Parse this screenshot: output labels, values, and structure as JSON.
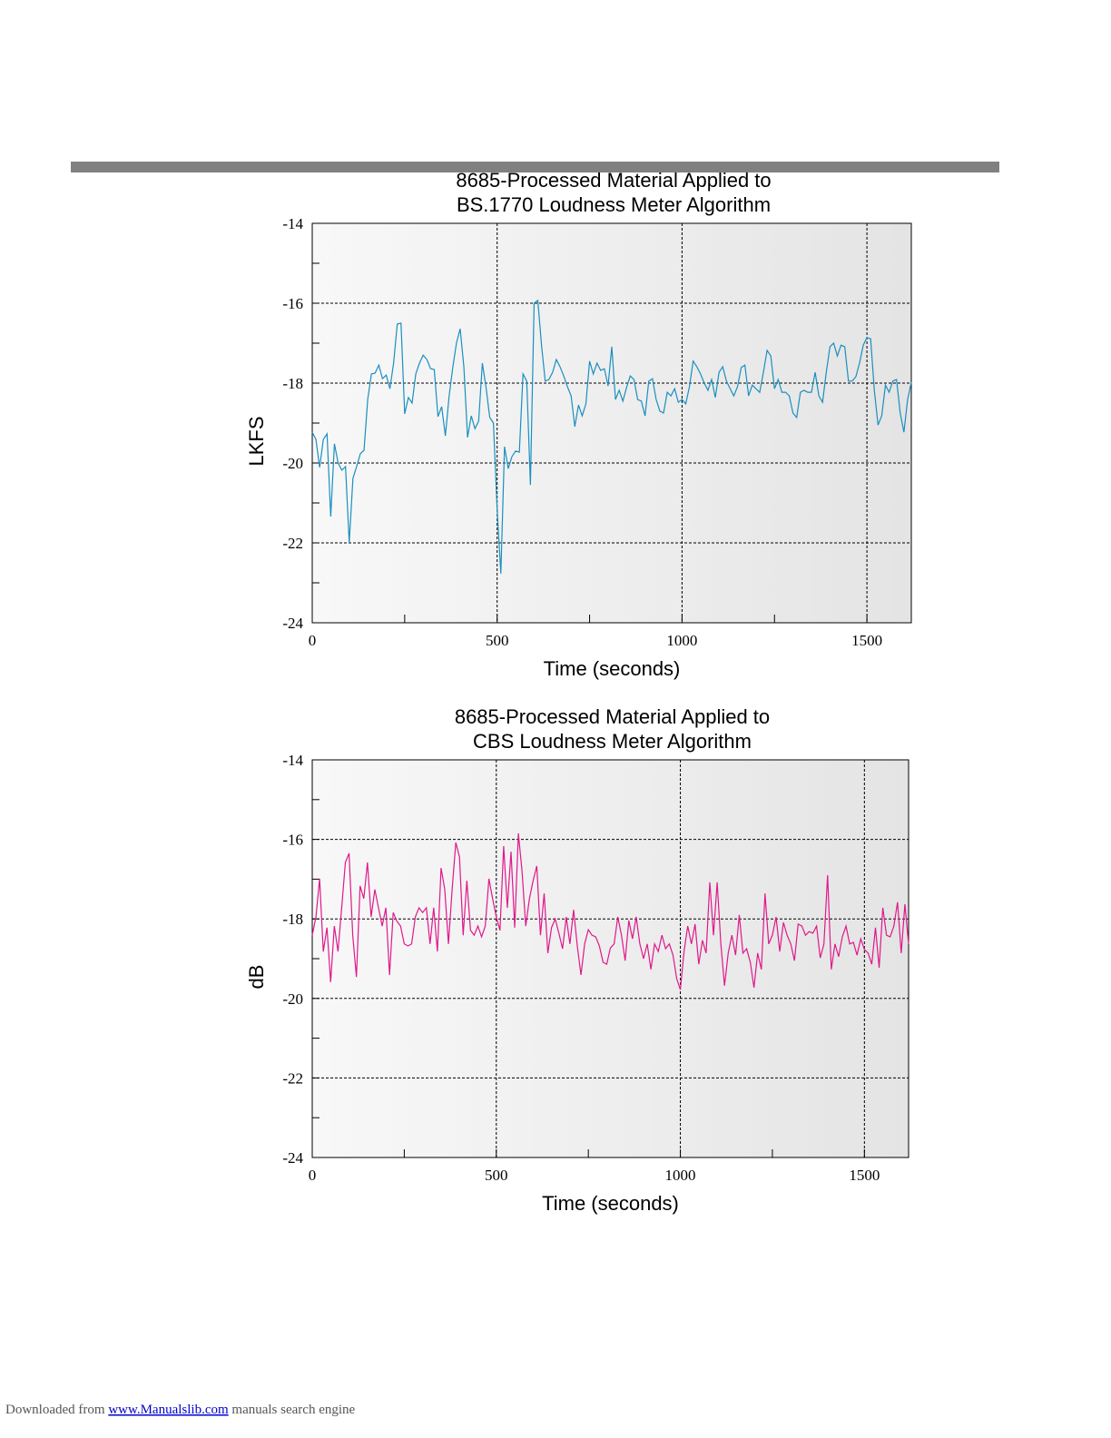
{
  "chart_data": [
    {
      "type": "line",
      "title": [
        "8685-Processed Material Applied to",
        "BS.1770 Loudness Meter Algorithm"
      ],
      "x_label": "Time (seconds)",
      "y_label": "LKFS",
      "xlim": [
        0,
        1620
      ],
      "xticks": [
        0,
        500,
        1000,
        1500
      ],
      "xminorticks": [
        250,
        750,
        1250
      ],
      "ylim": [
        -24,
        -14
      ],
      "yticks": [
        -24,
        -22,
        -20,
        -18,
        -16,
        -14
      ],
      "yminorticks": [
        -23,
        -21,
        -19,
        -17,
        -15
      ],
      "grid": true,
      "x": [
        0,
        10,
        20,
        30,
        40,
        50,
        60,
        70,
        80,
        90,
        100,
        110,
        120,
        130,
        140,
        150,
        160,
        170,
        180,
        190,
        200,
        210,
        220,
        230,
        240,
        250,
        260,
        270,
        280,
        290,
        300,
        310,
        320,
        330,
        340,
        350,
        360,
        370,
        380,
        390,
        400,
        410,
        420,
        430,
        440,
        450,
        460,
        470,
        480,
        490,
        500,
        510,
        520,
        530,
        540,
        550,
        560,
        570,
        580,
        590,
        600,
        610,
        620,
        630,
        640,
        650,
        660,
        670,
        680,
        690,
        700,
        710,
        720,
        730,
        740,
        750,
        760,
        770,
        780,
        790,
        800,
        810,
        820,
        830,
        840,
        850,
        860,
        870,
        880,
        890,
        900,
        910,
        920,
        930,
        940,
        950,
        960,
        970,
        980,
        990,
        1000,
        1010,
        1020,
        1030,
        1040,
        1050,
        1060,
        1070,
        1080,
        1090,
        1100,
        1110,
        1120,
        1130,
        1140,
        1150,
        1160,
        1170,
        1180,
        1190,
        1200,
        1210,
        1220,
        1230,
        1240,
        1250,
        1260,
        1270,
        1280,
        1290,
        1300,
        1310,
        1320,
        1330,
        1340,
        1350,
        1360,
        1370,
        1380,
        1390,
        1400,
        1410,
        1420,
        1430,
        1440,
        1450,
        1460,
        1470,
        1480,
        1490,
        1500,
        1510,
        1520,
        1530,
        1540,
        1550,
        1560,
        1570,
        1580,
        1590,
        1600,
        1610,
        1620
      ],
      "series": [
        {
          "color": "#1a8fbf",
          "values": [
            -19.23,
            -19.41,
            -20.11,
            -19.41,
            -19.27,
            -21.34,
            -19.52,
            -20.0,
            -20.18,
            -20.09,
            -22.0,
            -20.39,
            -20.09,
            -19.77,
            -19.68,
            -18.41,
            -17.77,
            -17.75,
            -17.55,
            -17.89,
            -17.8,
            -18.14,
            -17.5,
            -16.52,
            -16.5,
            -18.77,
            -18.36,
            -18.5,
            -17.77,
            -17.5,
            -17.3,
            -17.41,
            -17.64,
            -17.66,
            -18.84,
            -18.59,
            -19.32,
            -18.34,
            -17.61,
            -17.0,
            -16.64,
            -17.59,
            -19.36,
            -18.82,
            -19.14,
            -18.95,
            -17.5,
            -18.11,
            -18.86,
            -19.0,
            -21.16,
            -22.77,
            -19.59,
            -20.14,
            -19.84,
            -19.7,
            -19.73,
            -17.77,
            -17.95,
            -20.55,
            -16.0,
            -15.93,
            -17.05,
            -17.95,
            -17.91,
            -17.73,
            -17.41,
            -17.59,
            -17.82,
            -18.09,
            -18.32,
            -19.09,
            -18.55,
            -18.82,
            -18.52,
            -17.45,
            -17.77,
            -17.5,
            -17.68,
            -17.64,
            -18.07,
            -17.09,
            -18.41,
            -18.18,
            -18.45,
            -18.11,
            -17.82,
            -17.91,
            -18.41,
            -18.45,
            -18.82,
            -17.95,
            -17.89,
            -18.41,
            -18.7,
            -18.75,
            -18.23,
            -18.32,
            -18.14,
            -18.48,
            -18.41,
            -18.52,
            -18.09,
            -17.45,
            -17.59,
            -17.77,
            -18.0,
            -18.18,
            -17.91,
            -18.36,
            -17.73,
            -17.59,
            -17.95,
            -18.14,
            -18.32,
            -18.09,
            -17.61,
            -17.55,
            -18.32,
            -18.05,
            -18.14,
            -18.23,
            -17.73,
            -17.18,
            -17.32,
            -18.14,
            -17.91,
            -18.23,
            -18.23,
            -18.32,
            -18.75,
            -18.86,
            -18.23,
            -18.18,
            -18.23,
            -18.23,
            -17.73,
            -18.32,
            -18.48,
            -17.73,
            -17.09,
            -17.0,
            -17.32,
            -17.05,
            -17.09,
            -17.95,
            -17.95,
            -17.84,
            -17.5,
            -17.05,
            -16.86,
            -16.89,
            -18.18,
            -19.05,
            -18.82,
            -18.05,
            -18.23,
            -17.95,
            -17.91,
            -18.75,
            -19.23,
            -18.41,
            -17.98
          ]
        }
      ]
    },
    {
      "type": "line",
      "title": [
        "8685-Processed Material Applied to",
        "CBS Loudness Meter Algorithm"
      ],
      "x_label": "Time (seconds)",
      "y_label": "dB",
      "xlim": [
        0,
        1620
      ],
      "xticks": [
        0,
        500,
        1000,
        1500
      ],
      "xminorticks": [
        250,
        750,
        1250
      ],
      "ylim": [
        -24,
        -14
      ],
      "yticks": [
        -24,
        -22,
        -20,
        -18,
        -16,
        -14
      ],
      "yminorticks": [
        -23,
        -21,
        -19,
        -17,
        -15
      ],
      "grid": true,
      "x": [
        0,
        10,
        20,
        30,
        40,
        50,
        60,
        70,
        80,
        90,
        100,
        110,
        120,
        130,
        140,
        150,
        160,
        170,
        180,
        190,
        200,
        210,
        220,
        230,
        240,
        250,
        260,
        270,
        280,
        290,
        300,
        310,
        320,
        330,
        340,
        350,
        360,
        370,
        380,
        390,
        400,
        410,
        420,
        430,
        440,
        450,
        460,
        470,
        480,
        490,
        500,
        510,
        520,
        530,
        540,
        550,
        560,
        570,
        580,
        590,
        600,
        610,
        620,
        630,
        640,
        650,
        660,
        670,
        680,
        690,
        700,
        710,
        720,
        730,
        740,
        750,
        760,
        770,
        780,
        790,
        800,
        810,
        820,
        830,
        840,
        850,
        860,
        870,
        880,
        890,
        900,
        910,
        920,
        930,
        940,
        950,
        960,
        970,
        980,
        990,
        1000,
        1010,
        1020,
        1030,
        1040,
        1050,
        1060,
        1070,
        1080,
        1090,
        1100,
        1110,
        1120,
        1130,
        1140,
        1150,
        1160,
        1170,
        1180,
        1190,
        1200,
        1210,
        1220,
        1230,
        1240,
        1250,
        1260,
        1270,
        1280,
        1290,
        1300,
        1310,
        1320,
        1330,
        1340,
        1350,
        1360,
        1370,
        1380,
        1390,
        1400,
        1410,
        1420,
        1430,
        1440,
        1450,
        1460,
        1470,
        1480,
        1490,
        1500,
        1510,
        1520,
        1530,
        1540,
        1550,
        1560,
        1570,
        1580,
        1590,
        1600,
        1610,
        1620
      ],
      "series": [
        {
          "color": "#e0188c",
          "values": [
            -18.41,
            -17.95,
            -16.99,
            -18.82,
            -18.22,
            -19.59,
            -18.18,
            -18.82,
            -17.72,
            -16.58,
            -16.35,
            -18.41,
            -19.46,
            -17.17,
            -17.49,
            -16.58,
            -17.95,
            -17.26,
            -17.72,
            -18.18,
            -17.72,
            -19.41,
            -17.84,
            -18.06,
            -18.18,
            -18.63,
            -18.68,
            -18.63,
            -17.95,
            -17.72,
            -17.84,
            -17.72,
            -18.63,
            -17.72,
            -18.82,
            -16.72,
            -17.26,
            -18.63,
            -17.26,
            -16.08,
            -16.44,
            -18.41,
            -17.04,
            -18.29,
            -18.41,
            -18.18,
            -18.45,
            -18.18,
            -16.99,
            -17.49,
            -17.95,
            -18.29,
            -16.17,
            -17.72,
            -16.31,
            -18.22,
            -15.85,
            -16.81,
            -18.18,
            -17.49,
            -17.04,
            -16.67,
            -18.41,
            -17.36,
            -18.86,
            -18.22,
            -18.0,
            -18.36,
            -18.75,
            -17.95,
            -18.63,
            -17.77,
            -18.68,
            -19.41,
            -18.63,
            -18.27,
            -18.41,
            -18.45,
            -18.68,
            -19.09,
            -19.14,
            -18.73,
            -18.63,
            -17.95,
            -18.41,
            -19.05,
            -18.04,
            -18.5,
            -17.95,
            -18.63,
            -19.0,
            -18.63,
            -19.27,
            -18.63,
            -18.82,
            -18.41,
            -18.75,
            -18.63,
            -18.91,
            -19.5,
            -19.78,
            -18.82,
            -18.18,
            -18.63,
            -18.13,
            -19.14,
            -18.54,
            -18.86,
            -17.08,
            -18.41,
            -17.08,
            -18.63,
            -19.68,
            -18.86,
            -18.41,
            -18.91,
            -17.9,
            -18.86,
            -18.75,
            -19.09,
            -19.73,
            -18.86,
            -19.27,
            -17.36,
            -18.63,
            -18.41,
            -17.95,
            -18.82,
            -18.09,
            -18.41,
            -18.63,
            -19.05,
            -18.13,
            -18.18,
            -18.41,
            -18.32,
            -18.36,
            -18.18,
            -18.98,
            -18.63,
            -16.9,
            -19.27,
            -18.63,
            -18.95,
            -18.45,
            -18.18,
            -18.63,
            -18.59,
            -18.91,
            -18.5,
            -18.77,
            -18.86,
            -19.14,
            -18.22,
            -19.23,
            -17.72,
            -18.41,
            -18.45,
            -18.18,
            -17.58,
            -18.86,
            -17.63,
            -18.63
          ]
        }
      ]
    }
  ],
  "footer": {
    "prefix": "Downloaded from",
    "link": "www.Manualslib.com",
    "suffix": "manuals search engine"
  }
}
